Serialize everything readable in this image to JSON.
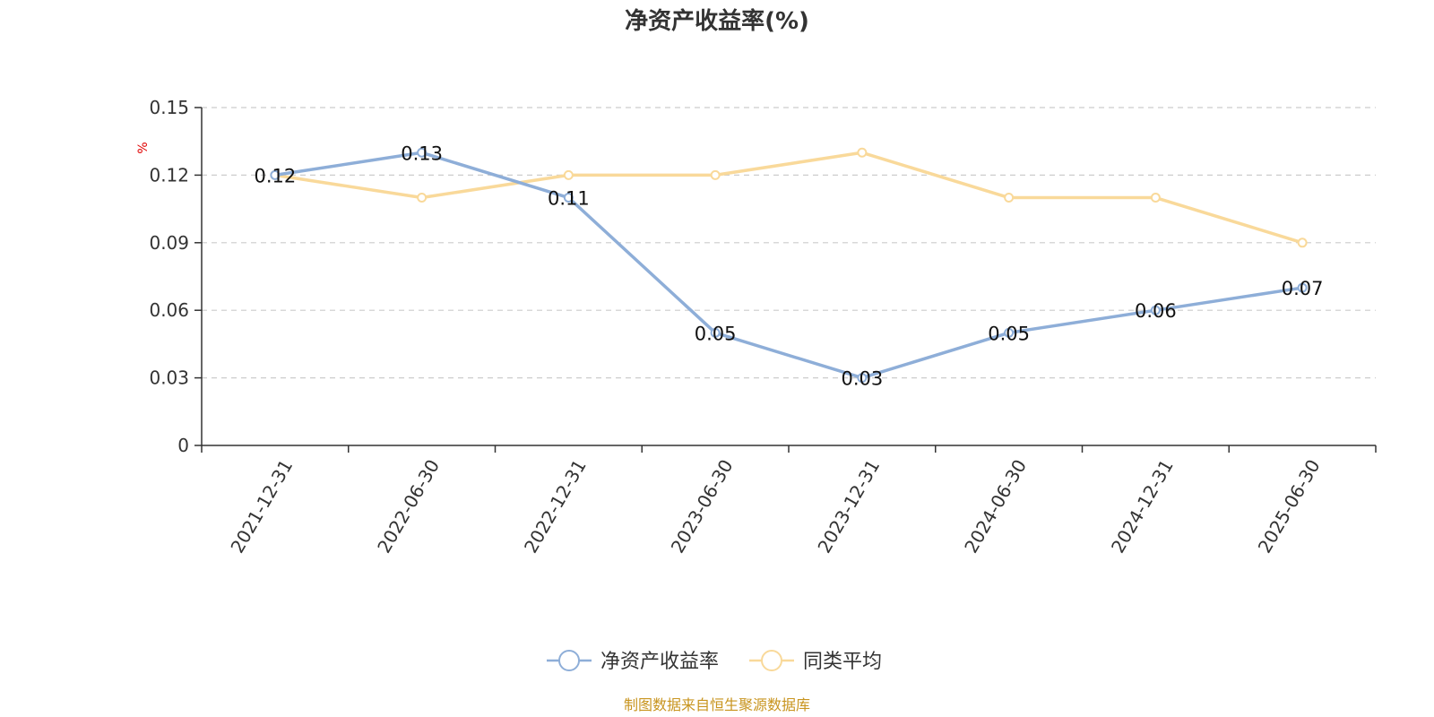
{
  "chart_data": {
    "type": "line",
    "title": "净资产收益率(%)",
    "ylabel": "%",
    "categories": [
      "2021-12-31",
      "2022-06-30",
      "2022-12-31",
      "2023-06-30",
      "2023-12-31",
      "2024-06-30",
      "2024-12-31",
      "2025-06-30"
    ],
    "ylim": [
      0,
      0.15
    ],
    "yticks": [
      "0",
      "0.03",
      "0.06",
      "0.09",
      "0.12",
      "0.15"
    ],
    "yticks_values": [
      0,
      0.03,
      0.06,
      0.09,
      0.12,
      0.15
    ],
    "grid": true,
    "legend_position": "bottom",
    "series": [
      {
        "name": "净资产收益率",
        "color": "#8eaed8",
        "values": [
          0.12,
          0.13,
          0.11,
          0.05,
          0.03,
          0.05,
          0.06,
          0.07
        ],
        "labels": [
          "0.12",
          "0.13",
          "0.11",
          "0.05",
          "0.03",
          "0.05",
          "0.06",
          "0.07"
        ],
        "show_labels": true
      },
      {
        "name": "同类平均",
        "color": "#f9d99a",
        "values": [
          0.12,
          0.11,
          0.12,
          0.12,
          0.13,
          0.11,
          0.11,
          0.09
        ],
        "show_labels": false
      }
    ],
    "source": "制图数据来自恒生聚源数据库"
  }
}
